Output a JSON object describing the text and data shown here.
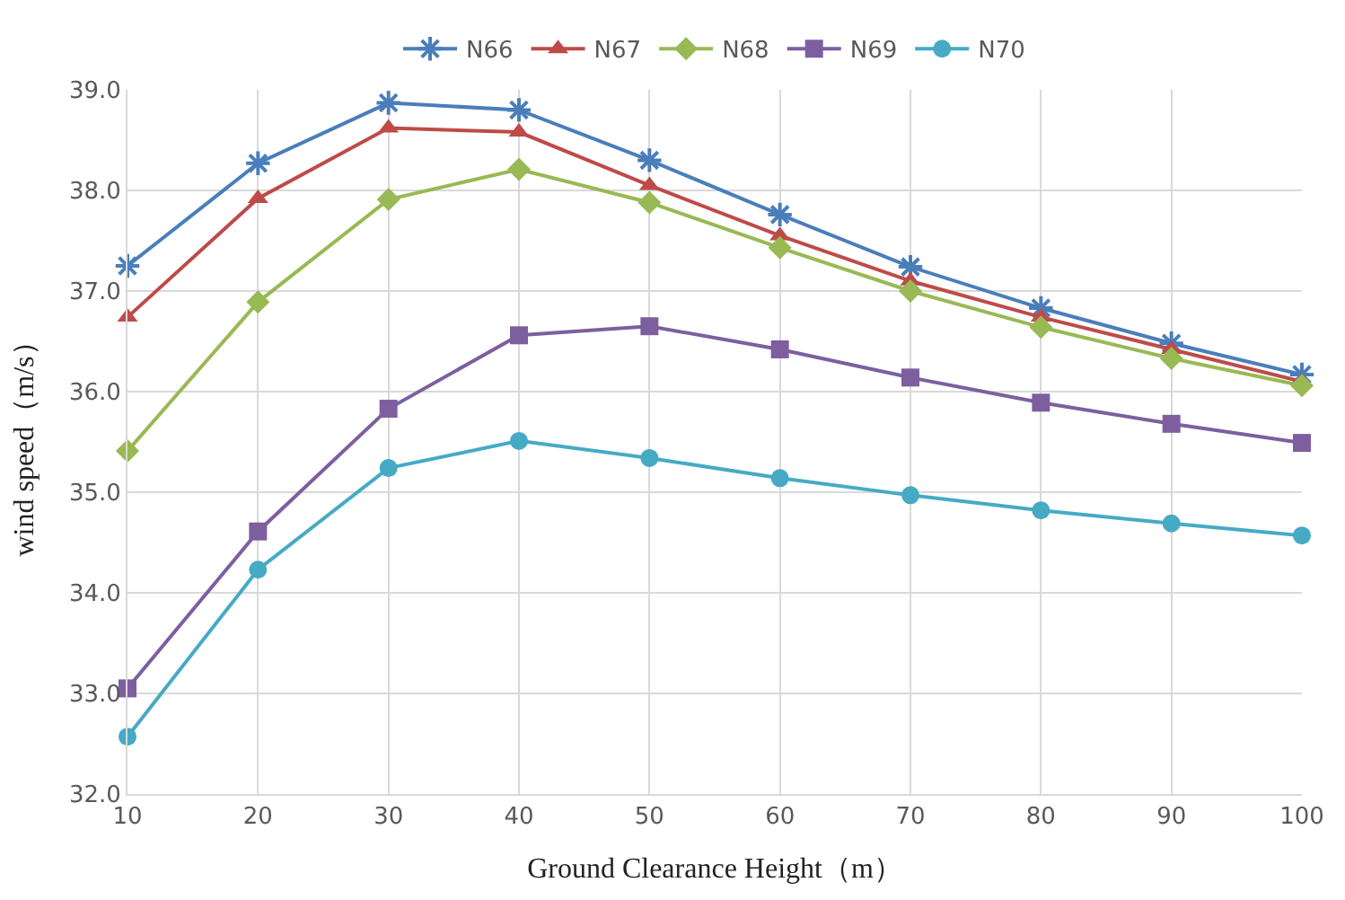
{
  "chart_data": {
    "type": "line",
    "xlabel": "Ground Clearance Height（m）",
    "ylabel": "wind speed（m/s）",
    "x": [
      10,
      20,
      30,
      40,
      50,
      60,
      70,
      80,
      90,
      100
    ],
    "xlim": [
      10,
      100
    ],
    "xticks": [
      10,
      20,
      30,
      40,
      50,
      60,
      70,
      80,
      90,
      100
    ],
    "ylim": [
      32,
      39
    ],
    "yticks": [
      {
        "value": 32,
        "label": "32.0"
      },
      {
        "value": 33,
        "label": "33.0"
      },
      {
        "value": 34,
        "label": "34.0"
      },
      {
        "value": 35,
        "label": "35.0"
      },
      {
        "value": 36,
        "label": "36.0"
      },
      {
        "value": 37,
        "label": "37.0"
      },
      {
        "value": 38,
        "label": "38.0"
      },
      {
        "value": 39,
        "label": "39.0"
      }
    ],
    "grid": true,
    "legend": "top",
    "line_style": "solid",
    "series": [
      {
        "name": "N66",
        "color": "#4a7ebb",
        "marker": "cross",
        "values": [
          37.25,
          38.27,
          38.87,
          38.8,
          38.3,
          37.76,
          37.24,
          36.83,
          36.48,
          36.17
        ]
      },
      {
        "name": "N67",
        "color": "#be4b48",
        "marker": "triangle",
        "values": [
          36.74,
          37.92,
          38.62,
          38.58,
          38.05,
          37.55,
          37.1,
          36.74,
          36.42,
          36.1
        ]
      },
      {
        "name": "N68",
        "color": "#98b954",
        "marker": "diamond",
        "values": [
          35.41,
          36.89,
          37.91,
          38.21,
          37.88,
          37.43,
          37.0,
          36.64,
          36.33,
          36.06
        ]
      },
      {
        "name": "N69",
        "color": "#7d5fa0",
        "marker": "square",
        "values": [
          33.05,
          34.61,
          35.83,
          36.56,
          36.65,
          36.42,
          36.14,
          35.89,
          35.68,
          35.49
        ]
      },
      {
        "name": "N70",
        "color": "#46aac5",
        "marker": "circle",
        "values": [
          32.57,
          34.23,
          35.24,
          35.51,
          35.34,
          35.14,
          34.97,
          34.82,
          34.69,
          34.57
        ]
      }
    ]
  }
}
